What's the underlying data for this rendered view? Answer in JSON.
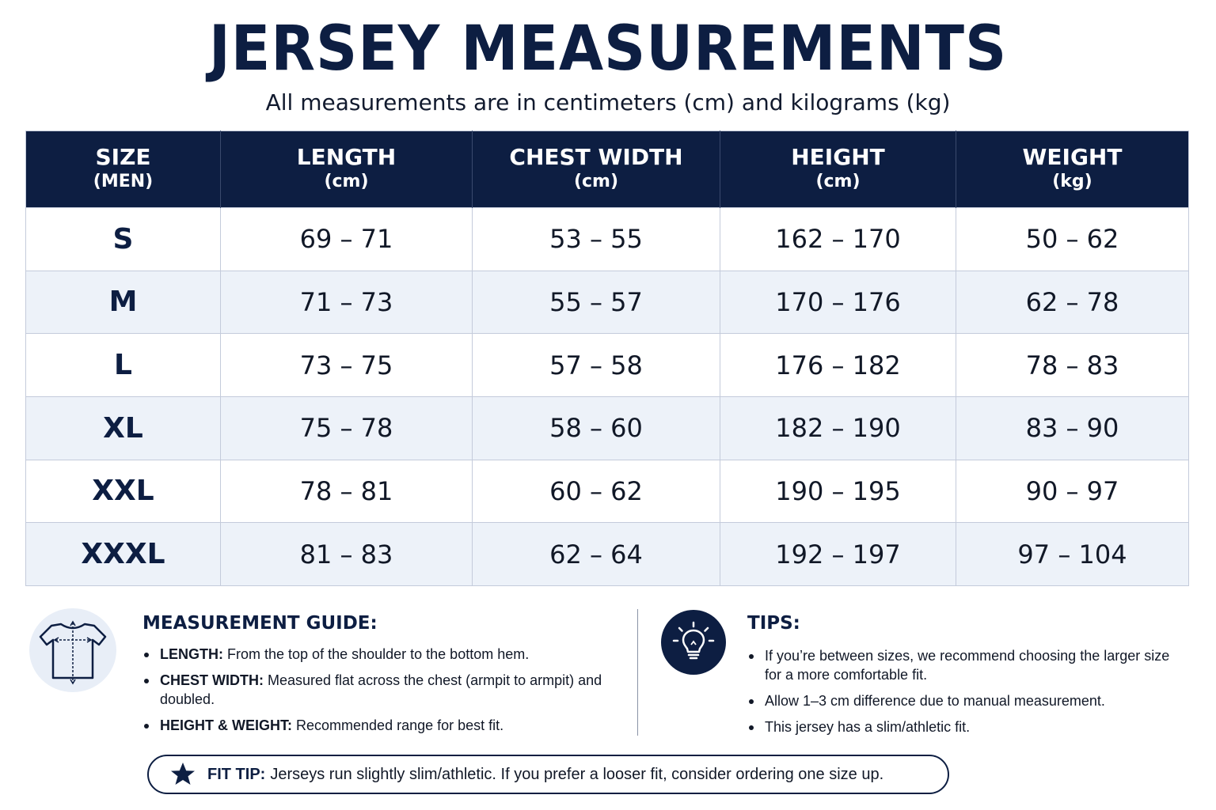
{
  "header": {
    "title": "JERSEY MEASUREMENTS",
    "subtitle": "All measurements are in centimeters (cm) and kilograms (kg)"
  },
  "table": {
    "columns": [
      {
        "label": "SIZE",
        "unit": "(MEN)"
      },
      {
        "label": "LENGTH",
        "unit": "(cm)"
      },
      {
        "label": "CHEST WIDTH",
        "unit": "(cm)"
      },
      {
        "label": "HEIGHT",
        "unit": "(cm)"
      },
      {
        "label": "WEIGHT",
        "unit": "(kg)"
      }
    ],
    "rows": [
      {
        "size": "S",
        "length": "69 – 71",
        "chest": "53 – 55",
        "height": "162 – 170",
        "weight": "50 – 62"
      },
      {
        "size": "M",
        "length": "71 – 73",
        "chest": "55 – 57",
        "height": "170 – 176",
        "weight": "62 – 78"
      },
      {
        "size": "L",
        "length": "73 – 75",
        "chest": "57 – 58",
        "height": "176 – 182",
        "weight": "78 – 83"
      },
      {
        "size": "XL",
        "length": "75 – 78",
        "chest": "58 – 60",
        "height": "182 – 190",
        "weight": "83 – 90"
      },
      {
        "size": "XXL",
        "length": "78 – 81",
        "chest": "60 – 62",
        "height": "190 – 195",
        "weight": "90 – 97"
      },
      {
        "size": "XXXL",
        "length": "81 – 83",
        "chest": "62 – 64",
        "height": "192 – 197",
        "weight": "97 – 104"
      }
    ]
  },
  "guide": {
    "icon": "tshirt-measure-icon",
    "heading": "MEASUREMENT GUIDE:",
    "items": [
      {
        "term": "LENGTH:",
        "text": "From the top of the shoulder to the bottom hem."
      },
      {
        "term": "CHEST WIDTH:",
        "text": "Measured flat across the chest (armpit to armpit) and doubled."
      },
      {
        "term": "HEIGHT & WEIGHT:",
        "text": "Recommended range for best fit."
      }
    ]
  },
  "tips": {
    "icon": "lightbulb-icon",
    "heading": "TIPS:",
    "items": [
      "If you’re between sizes, we recommend choosing the larger size for a more comfortable fit.",
      "Allow 1–3 cm difference due to manual measurement.",
      "This jersey has a slim/athletic fit."
    ]
  },
  "fit_tip": {
    "icon": "star-icon",
    "label": "FIT TIP:",
    "text": "Jerseys run slightly slim/athletic. If you prefer a looser fit, consider ordering one size up."
  },
  "colors": {
    "navy": "#0d1e42",
    "row_alt": "#edf2f9",
    "border": "#c4cbdb"
  }
}
